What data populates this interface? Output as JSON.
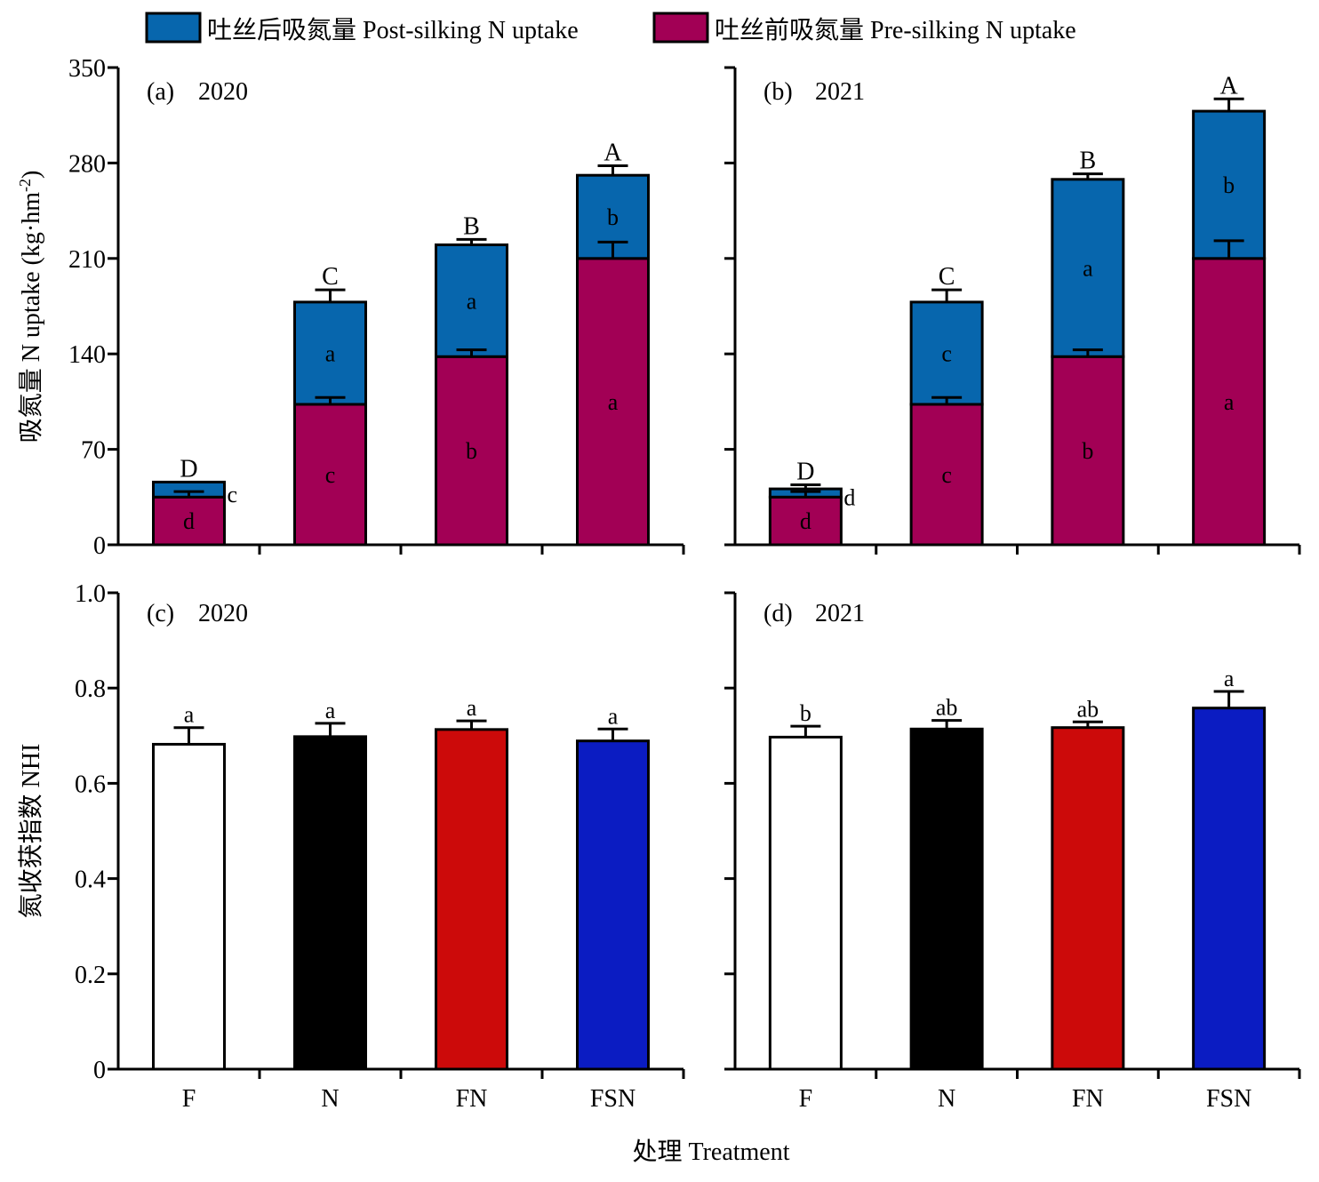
{
  "legend": {
    "items": [
      {
        "label": "吐丝后吸氮量 Post-silking N uptake",
        "color": "#0766ad"
      },
      {
        "label": "吐丝前吸氮量 Pre-silking N uptake",
        "color": "#a20055"
      }
    ]
  },
  "axes": {
    "top_ylabel": "吸氮量 N uptake (kg·hm",
    "top_ylabel_sup": "-2",
    "top_ylabel_close": ")",
    "bottom_ylabel": "氮收获指数 NHI",
    "xlabel": "处理 Treatment"
  },
  "chart_data": [
    {
      "type": "bar",
      "stacked": true,
      "panel_label": "(a)",
      "year": "2020",
      "categories": [
        "F",
        "N",
        "FN",
        "FSN"
      ],
      "ylim": [
        0,
        350
      ],
      "yticks": [
        0,
        70,
        140,
        210,
        280,
        350
      ],
      "show_ytick_labels": true,
      "series": [
        {
          "name": "吐丝前吸氮量 Pre-silking N uptake",
          "values": [
            35,
            103,
            138,
            210
          ],
          "errors": [
            4,
            5,
            5,
            12
          ],
          "letters": [
            "d",
            "c",
            "b",
            "a"
          ],
          "color": "#a20055"
        },
        {
          "name": "吐丝后吸氮量 Post-silking N uptake",
          "values": [
            11,
            75,
            82,
            61
          ],
          "errors": [
            0,
            9,
            4,
            7
          ],
          "letters": [
            "c",
            "a",
            "a",
            "b"
          ],
          "color": "#0766ad"
        }
      ],
      "total_letters": [
        "D",
        "C",
        "B",
        "A"
      ]
    },
    {
      "type": "bar",
      "stacked": true,
      "panel_label": "(b)",
      "year": "2021",
      "categories": [
        "F",
        "N",
        "FN",
        "FSN"
      ],
      "ylim": [
        0,
        350
      ],
      "yticks": [
        0,
        70,
        140,
        210,
        280,
        350
      ],
      "show_ytick_labels": false,
      "series": [
        {
          "name": "吐丝前吸氮量 Pre-silking N uptake",
          "values": [
            35,
            103,
            138,
            210
          ],
          "errors": [
            4,
            5,
            5,
            13
          ],
          "letters": [
            "d",
            "c",
            "b",
            "a"
          ],
          "color": "#a20055"
        },
        {
          "name": "吐丝后吸氮量 Post-silking N uptake",
          "values": [
            6,
            75,
            130,
            108
          ],
          "errors": [
            3,
            9,
            4,
            9
          ],
          "letters": [
            "d",
            "c",
            "a",
            "b"
          ],
          "color": "#0766ad"
        }
      ],
      "total_letters": [
        "D",
        "C",
        "B",
        "A"
      ]
    },
    {
      "type": "bar",
      "panel_label": "(c)",
      "year": "2020",
      "categories": [
        "F",
        "N",
        "FN",
        "FSN"
      ],
      "ylim": [
        0,
        1.0
      ],
      "yticks": [
        0,
        0.2,
        0.4,
        0.6,
        0.8,
        1.0
      ],
      "ytick_labels": [
        "0",
        "0.2",
        "0.4",
        "0.6",
        "0.8",
        "1.0"
      ],
      "show_ytick_labels": true,
      "values": [
        0.682,
        0.698,
        0.713,
        0.689
      ],
      "errors": [
        0.035,
        0.028,
        0.018,
        0.025
      ],
      "letters": [
        "a",
        "a",
        "a",
        "a"
      ],
      "colors": [
        "#ffffff",
        "#000000",
        "#cc0a0a",
        "#0b1cc2"
      ]
    },
    {
      "type": "bar",
      "panel_label": "(d)",
      "year": "2021",
      "categories": [
        "F",
        "N",
        "FN",
        "FSN"
      ],
      "ylim": [
        0,
        1.0
      ],
      "yticks": [
        0,
        0.2,
        0.4,
        0.6,
        0.8,
        1.0
      ],
      "show_ytick_labels": false,
      "values": [
        0.697,
        0.714,
        0.717,
        0.758
      ],
      "errors": [
        0.023,
        0.018,
        0.012,
        0.035
      ],
      "letters": [
        "b",
        "ab",
        "ab",
        "a"
      ],
      "colors": [
        "#ffffff",
        "#000000",
        "#cc0a0a",
        "#0b1cc2"
      ]
    }
  ]
}
